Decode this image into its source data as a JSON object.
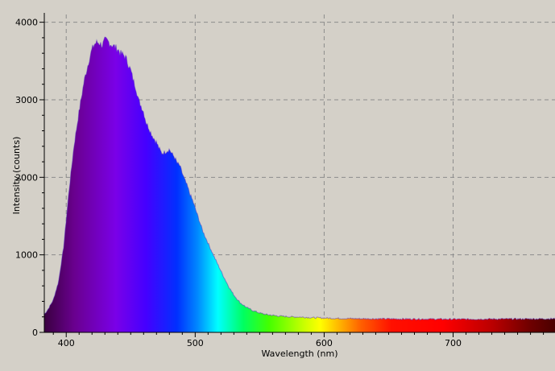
{
  "chart_data": {
    "type": "area",
    "title": "",
    "xlabel": "Wavelength (nm)",
    "ylabel": "Intensity (counts)",
    "xlim": [
      383,
      779
    ],
    "ylim": [
      0,
      4100
    ],
    "x_ticks": [
      400,
      500,
      600,
      700
    ],
    "y_ticks": [
      0,
      1000,
      2000,
      3000,
      4000
    ],
    "grid": true,
    "grid_style": "dashed",
    "fill": "visible-spectrum gradient",
    "series": [
      {
        "x": [
          383,
          386,
          390,
          394,
          398,
          402,
          406,
          410,
          414,
          418,
          420,
          422,
          424,
          426,
          428,
          430,
          432,
          434,
          436,
          438,
          440,
          442,
          444,
          446,
          448,
          450,
          452,
          454,
          456,
          458,
          460,
          462,
          464,
          466,
          468,
          470,
          472,
          474,
          476,
          478,
          480,
          482,
          484,
          486,
          488,
          490,
          492,
          494,
          496,
          498,
          500,
          503,
          506,
          510,
          514,
          518,
          522,
          526,
          530,
          535,
          540,
          545,
          550,
          555,
          560,
          565,
          570,
          575,
          580,
          585,
          590,
          595,
          600,
          610,
          620,
          630,
          640,
          650,
          660,
          670,
          680,
          690,
          700,
          710,
          720,
          730,
          740,
          750,
          760,
          770,
          779
        ],
        "y": [
          230,
          300,
          420,
          650,
          1100,
          1800,
          2400,
          2850,
          3250,
          3530,
          3650,
          3720,
          3740,
          3730,
          3700,
          3770,
          3760,
          3720,
          3700,
          3680,
          3650,
          3600,
          3580,
          3550,
          3460,
          3380,
          3250,
          3150,
          3000,
          2920,
          2840,
          2700,
          2640,
          2560,
          2500,
          2450,
          2370,
          2310,
          2320,
          2340,
          2360,
          2300,
          2260,
          2180,
          2150,
          2050,
          1960,
          1880,
          1780,
          1700,
          1600,
          1450,
          1300,
          1150,
          1000,
          860,
          720,
          590,
          480,
          380,
          320,
          280,
          250,
          230,
          220,
          210,
          205,
          200,
          198,
          195,
          190,
          188,
          185,
          180,
          178,
          176,
          175,
          174,
          173,
          172,
          172,
          171,
          170,
          170,
          171,
          172,
          173,
          173,
          174,
          175,
          176
        ]
      }
    ]
  }
}
